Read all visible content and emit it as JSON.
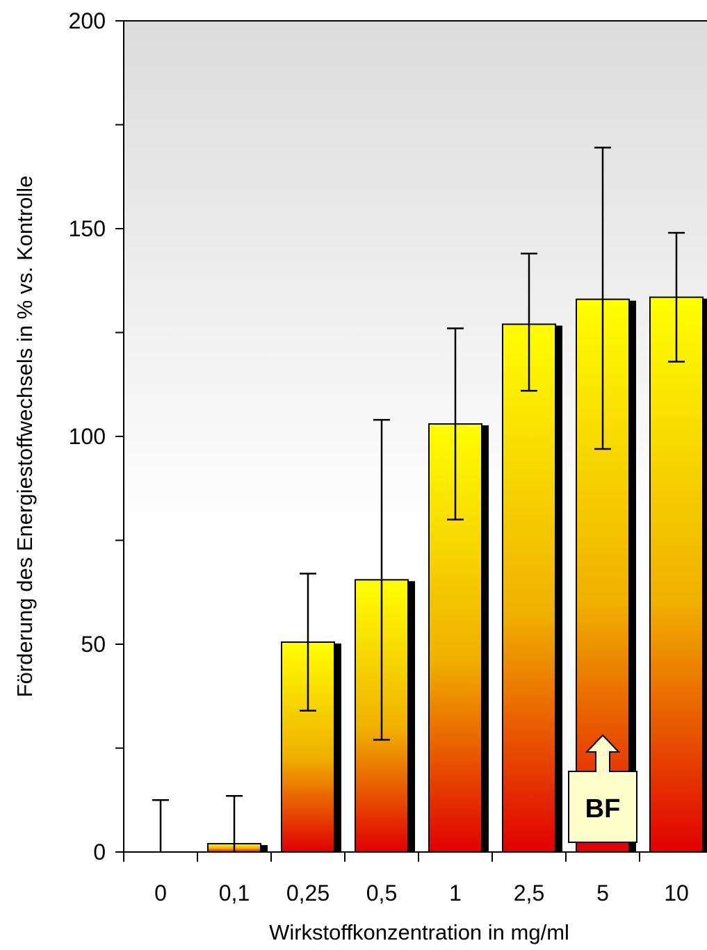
{
  "chart_data": {
    "type": "bar",
    "title": "",
    "xlabel": "Wirkstoffkonzentration in mg/ml",
    "ylabel": "Förderung des Energiestoffwechsels in % vs. Kontrolle",
    "categories": [
      "0",
      "0,1",
      "0,25",
      "0,5",
      "1",
      "2,5",
      "5",
      "10"
    ],
    "values": [
      0,
      2,
      50.5,
      65.5,
      103,
      127,
      133,
      133.5
    ],
    "error_bars": [
      [
        0,
        12.5
      ],
      [
        0,
        13.5
      ],
      [
        34,
        67
      ],
      [
        27,
        104
      ],
      [
        80,
        126
      ],
      [
        111,
        144
      ],
      [
        97,
        169.5
      ],
      [
        118,
        149
      ]
    ],
    "ylim": [
      0,
      200
    ],
    "y_ticks": [
      "0",
      "50",
      "100",
      "150",
      "200"
    ],
    "y_minor_step": 25,
    "grid": false,
    "legend": "none",
    "colors": {
      "bar_top": "#ffff00",
      "bar_bottom": "#e00000",
      "bar_shadow": "#000000",
      "plot_bg_top": "#dcdcdc",
      "plot_bg_bottom": "#ffffff",
      "marker_bg": "#ffffcc"
    },
    "annotations": [
      {
        "text": "BF",
        "category": "5",
        "shape": "arrow-up-label"
      }
    ]
  }
}
